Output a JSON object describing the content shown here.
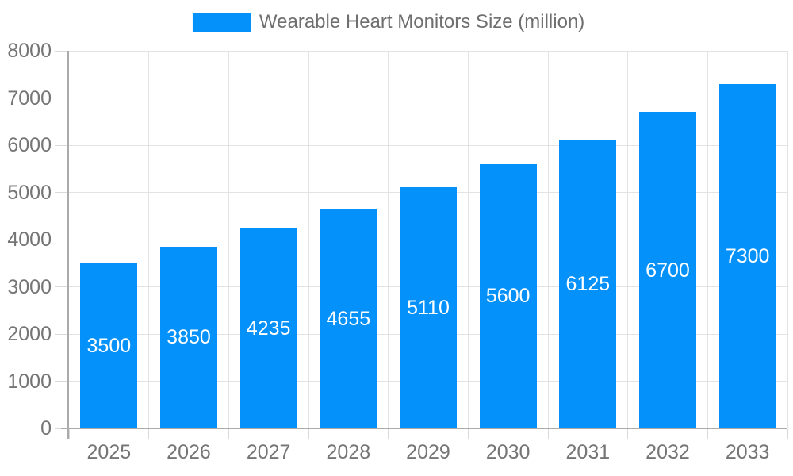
{
  "chart_data": {
    "type": "bar",
    "title": "Wearable Heart Monitors Size (million)",
    "legend": {
      "label": "Wearable Heart Monitors Size (million)",
      "position": "top"
    },
    "categories": [
      "2025",
      "2026",
      "2027",
      "2028",
      "2029",
      "2030",
      "2031",
      "2032",
      "2033"
    ],
    "series": [
      {
        "name": "Wearable Heart Monitors Size (million)",
        "values": [
          3500,
          3850,
          4235,
          4655,
          5110,
          5600,
          6125,
          6700,
          7300
        ]
      }
    ],
    "value_labels_shown_inside_bars": true,
    "xlabel": "",
    "ylabel": "",
    "ylim": [
      0,
      8000
    ],
    "y_ticks": [
      0,
      1000,
      2000,
      3000,
      4000,
      5000,
      6000,
      7000,
      8000
    ],
    "grid": true,
    "colors": {
      "bar": "#0591fa",
      "bar_label": "#ffffff",
      "grid_line": "#e3e3e3",
      "tick": "#d9d9d9",
      "axis_line": "#ababab",
      "axis_text": "#757575",
      "legend_text": "#6f6f6f",
      "background": "#ffffff"
    }
  }
}
